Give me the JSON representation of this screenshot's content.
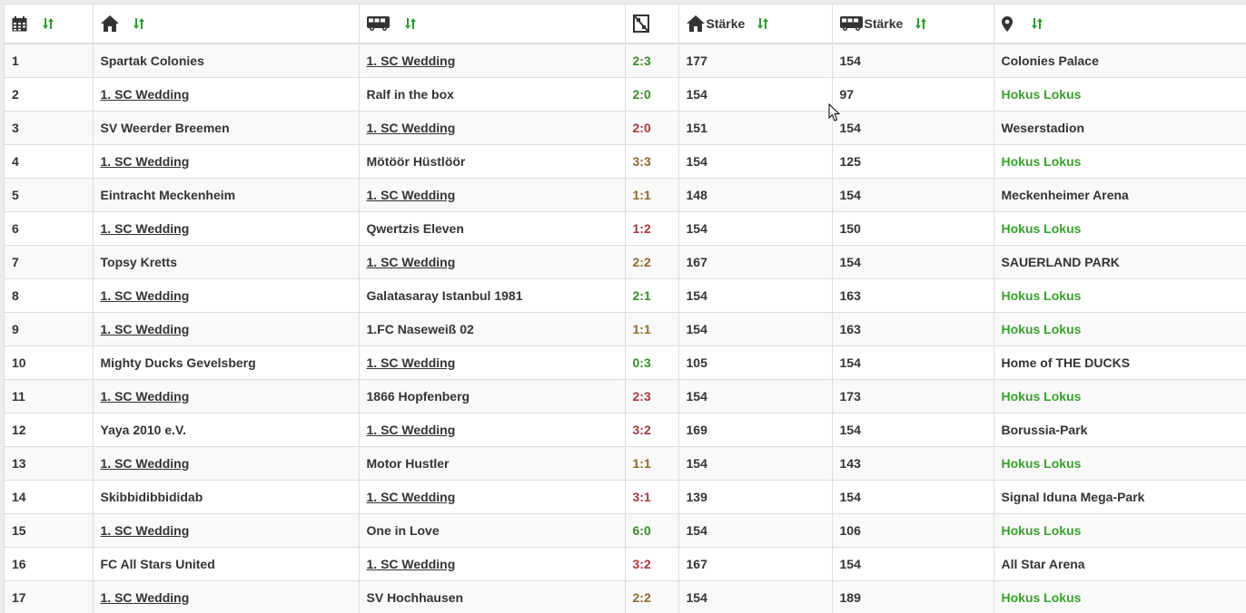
{
  "colors": {
    "win": "#3c8a2e",
    "draw": "#8a6a2e",
    "loss": "#a33a3a",
    "home_venue": "#3aa02e",
    "sort_icon": "#2e9a2e"
  },
  "header": {
    "date_icon": "calendar-icon",
    "home_icon": "home-icon",
    "away_icon": "bus-icon",
    "result_icon": "scoreboard-icon",
    "home_strength_label": "Stärke",
    "away_strength_label": "Stärke",
    "venue_icon": "map-marker-icon",
    "sort_icon": "sort-arrows-icon"
  },
  "rows": [
    {
      "day": "1",
      "home": "Spartak Colonies",
      "away": "1. SC Wedding",
      "result": "2:3",
      "outcome": "win",
      "home_strength": "177",
      "away_strength": "154",
      "venue": "Colonies Palace",
      "is_home": false
    },
    {
      "day": "2",
      "home": "1. SC Wedding",
      "away": "Ralf in the box",
      "result": "2:0",
      "outcome": "win",
      "home_strength": "154",
      "away_strength": "97",
      "venue": "Hokus Lokus",
      "is_home": true
    },
    {
      "day": "3",
      "home": "SV Weerder Breemen",
      "away": "1. SC Wedding",
      "result": "2:0",
      "outcome": "loss",
      "home_strength": "151",
      "away_strength": "154",
      "venue": "Weserstadion",
      "is_home": false
    },
    {
      "day": "4",
      "home": "1. SC Wedding",
      "away": "Mötöör Hüstlöör",
      "result": "3:3",
      "outcome": "draw",
      "home_strength": "154",
      "away_strength": "125",
      "venue": "Hokus Lokus",
      "is_home": true
    },
    {
      "day": "5",
      "home": "Eintracht Meckenheim",
      "away": "1. SC Wedding",
      "result": "1:1",
      "outcome": "draw",
      "home_strength": "148",
      "away_strength": "154",
      "venue": "Meckenheimer Arena",
      "is_home": false
    },
    {
      "day": "6",
      "home": "1. SC Wedding",
      "away": "Qwertzis Eleven",
      "result": "1:2",
      "outcome": "loss",
      "home_strength": "154",
      "away_strength": "150",
      "venue": "Hokus Lokus",
      "is_home": true
    },
    {
      "day": "7",
      "home": "Topsy Kretts",
      "away": "1. SC Wedding",
      "result": "2:2",
      "outcome": "draw",
      "home_strength": "167",
      "away_strength": "154",
      "venue": "SAUERLAND PARK",
      "is_home": false
    },
    {
      "day": "8",
      "home": "1. SC Wedding",
      "away": "Galatasaray Istanbul 1981",
      "result": "2:1",
      "outcome": "win",
      "home_strength": "154",
      "away_strength": "163",
      "venue": "Hokus Lokus",
      "is_home": true
    },
    {
      "day": "9",
      "home": "1. SC Wedding",
      "away": "1.FC Naseweiß 02",
      "result": "1:1",
      "outcome": "draw",
      "home_strength": "154",
      "away_strength": "163",
      "venue": "Hokus Lokus",
      "is_home": true
    },
    {
      "day": "10",
      "home": "Mighty Ducks Gevelsberg",
      "away": "1. SC Wedding",
      "result": "0:3",
      "outcome": "win",
      "home_strength": "105",
      "away_strength": "154",
      "venue": "Home of THE DUCKS",
      "is_home": false
    },
    {
      "day": "11",
      "home": "1. SC Wedding",
      "away": "1866 Hopfenberg",
      "result": "2:3",
      "outcome": "loss",
      "home_strength": "154",
      "away_strength": "173",
      "venue": "Hokus Lokus",
      "is_home": true
    },
    {
      "day": "12",
      "home": "Yaya 2010 e.V.",
      "away": "1. SC Wedding",
      "result": "3:2",
      "outcome": "loss",
      "home_strength": "169",
      "away_strength": "154",
      "venue": "Borussia-Park",
      "is_home": false
    },
    {
      "day": "13",
      "home": "1. SC Wedding",
      "away": "Motor Hustler",
      "result": "1:1",
      "outcome": "draw",
      "home_strength": "154",
      "away_strength": "143",
      "venue": "Hokus Lokus",
      "is_home": true
    },
    {
      "day": "14",
      "home": "Skibbidibbididab",
      "away": "1. SC Wedding",
      "result": "3:1",
      "outcome": "loss",
      "home_strength": "139",
      "away_strength": "154",
      "venue": "Signal Iduna Mega-Park",
      "is_home": false
    },
    {
      "day": "15",
      "home": "1. SC Wedding",
      "away": "One in Love",
      "result": "6:0",
      "outcome": "win",
      "home_strength": "154",
      "away_strength": "106",
      "venue": "Hokus Lokus",
      "is_home": true
    },
    {
      "day": "16",
      "home": "FC All Stars United",
      "away": "1. SC Wedding",
      "result": "3:2",
      "outcome": "loss",
      "home_strength": "167",
      "away_strength": "154",
      "venue": "All Star Arena",
      "is_home": false
    },
    {
      "day": "17",
      "home": "1. SC Wedding",
      "away": "SV Hochhausen",
      "result": "2:2",
      "outcome": "draw",
      "home_strength": "154",
      "away_strength": "189",
      "venue": "Hokus Lokus",
      "is_home": true
    }
  ]
}
